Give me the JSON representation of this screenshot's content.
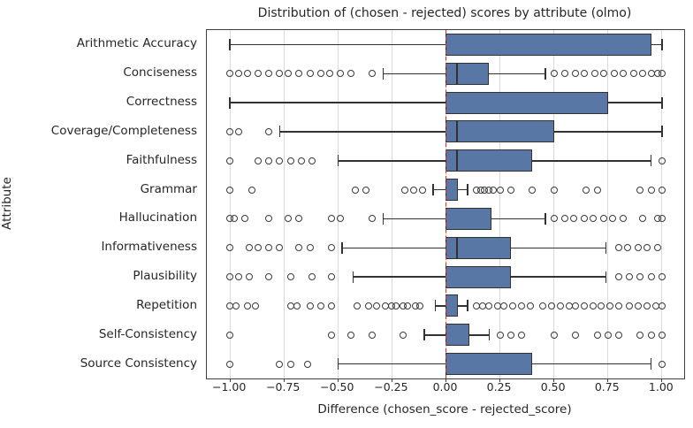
{
  "chart_data": {
    "type": "boxplot",
    "orientation": "horizontal",
    "title": "Distribution of (chosen - rejected) scores by attribute (olmo)",
    "xlabel": "Difference (chosen_score - rejected_score)",
    "ylabel": "Attribute",
    "xlim": [
      -1.107,
      1.103
    ],
    "grid": "vertical-only",
    "x_ticks": [
      {
        "value": -1.0,
        "label": "−1.00"
      },
      {
        "value": -0.75,
        "label": "−0.75"
      },
      {
        "value": -0.5,
        "label": "−0.50"
      },
      {
        "value": -0.25,
        "label": "−0.25"
      },
      {
        "value": 0.0,
        "label": "0.00"
      },
      {
        "value": 0.25,
        "label": "0.25"
      },
      {
        "value": 0.5,
        "label": "0.50"
      },
      {
        "value": 0.75,
        "label": "0.75"
      },
      {
        "value": 1.0,
        "label": "1.00"
      }
    ],
    "zero_line": {
      "value": 0.0,
      "style": "dashed",
      "color": "#e12a26"
    },
    "colors": {
      "box_fill": "#5877a5",
      "stroke": "#323232",
      "grid": "#d9d9d9",
      "text": "#262626",
      "zero_line": "#e12a26"
    },
    "rows": [
      {
        "label": "Arithmetic Accuracy",
        "whisker_low": -1.0,
        "q1": 0.0,
        "median": 0.0,
        "q3": 0.95,
        "whisker_high": 1.0,
        "outliers": []
      },
      {
        "label": "Conciseness",
        "whisker_low": -0.29,
        "q1": 0.0,
        "median": 0.05,
        "q3": 0.2,
        "whisker_high": 0.46,
        "outliers": [
          -1.0,
          -0.96,
          -0.92,
          -0.87,
          -0.82,
          -0.77,
          -0.73,
          -0.68,
          -0.63,
          -0.58,
          -0.54,
          -0.49,
          -0.44,
          -0.34,
          0.5,
          0.55,
          0.6,
          0.64,
          0.69,
          0.73,
          0.78,
          0.82,
          0.87,
          0.91,
          0.95,
          0.98,
          1.0
        ]
      },
      {
        "label": "Correctness",
        "whisker_low": -1.0,
        "q1": 0.0,
        "median": 0.0,
        "q3": 0.75,
        "whisker_high": 1.0,
        "outliers": []
      },
      {
        "label": "Coverage/Completeness",
        "whisker_low": -0.77,
        "q1": 0.0,
        "median": 0.05,
        "q3": 0.5,
        "whisker_high": 1.0,
        "outliers": [
          -1.0,
          -0.96,
          -0.82
        ]
      },
      {
        "label": "Faithfulness",
        "whisker_low": -0.5,
        "q1": 0.0,
        "median": 0.05,
        "q3": 0.4,
        "whisker_high": 0.95,
        "outliers": [
          -1.0,
          -0.87,
          -0.82,
          -0.77,
          -0.72,
          -0.67,
          -0.62,
          1.0
        ]
      },
      {
        "label": "Grammar",
        "whisker_low": -0.06,
        "q1": 0.0,
        "median": 0.0,
        "q3": 0.055,
        "whisker_high": 0.1,
        "outliers": [
          -1.0,
          -0.9,
          -0.42,
          -0.37,
          -0.19,
          -0.15,
          -0.11,
          0.14,
          0.16,
          0.18,
          0.2,
          0.22,
          0.25,
          0.3,
          0.4,
          0.5,
          0.65,
          0.7,
          0.9,
          0.95,
          1.0
        ]
      },
      {
        "label": "Hallucination",
        "whisker_low": -0.29,
        "q1": 0.0,
        "median": 0.0,
        "q3": 0.21,
        "whisker_high": 0.46,
        "outliers": [
          -1.0,
          -0.98,
          -0.93,
          -0.82,
          -0.73,
          -0.68,
          -0.53,
          -0.49,
          -0.34,
          0.5,
          0.55,
          0.59,
          0.64,
          0.68,
          0.73,
          0.77,
          0.82,
          0.91,
          0.98,
          1.0
        ]
      },
      {
        "label": "Informativeness",
        "whisker_low": -0.48,
        "q1": 0.0,
        "median": 0.05,
        "q3": 0.3,
        "whisker_high": 0.74,
        "outliers": [
          -1.0,
          -0.91,
          -0.87,
          -0.82,
          -0.77,
          -0.68,
          -0.63,
          -0.53,
          0.8,
          0.84,
          0.89,
          0.93,
          0.98
        ]
      },
      {
        "label": "Plausibility",
        "whisker_low": -0.43,
        "q1": 0.0,
        "median": 0.0,
        "q3": 0.3,
        "whisker_high": 0.74,
        "outliers": [
          -1.0,
          -0.96,
          -0.91,
          -0.82,
          -0.72,
          -0.62,
          -0.53,
          0.8,
          0.85,
          0.9,
          0.95,
          1.0
        ]
      },
      {
        "label": "Repetition",
        "whisker_low": -0.05,
        "q1": 0.0,
        "median": 0.0,
        "q3": 0.055,
        "whisker_high": 0.1,
        "outliers": [
          -1.0,
          -0.97,
          -0.92,
          -0.88,
          -0.72,
          -0.69,
          -0.63,
          -0.58,
          -0.53,
          -0.41,
          -0.36,
          -0.32,
          -0.28,
          -0.25,
          -0.23,
          -0.2,
          -0.18,
          -0.14,
          -0.12,
          0.14,
          0.17,
          0.2,
          0.24,
          0.27,
          0.31,
          0.35,
          0.39,
          0.45,
          0.49,
          0.53,
          0.57,
          0.6,
          0.64,
          0.68,
          0.72,
          0.76,
          0.8,
          0.85,
          0.89,
          0.93,
          0.97,
          1.0
        ]
      },
      {
        "label": "Self-Consistency",
        "whisker_low": -0.1,
        "q1": 0.0,
        "median": 0.0,
        "q3": 0.11,
        "whisker_high": 0.2,
        "outliers": [
          -1.0,
          -0.53,
          -0.44,
          -0.34,
          -0.2,
          0.25,
          0.3,
          0.35,
          0.5,
          0.6,
          0.7,
          0.75,
          0.8,
          0.9,
          0.95,
          1.0
        ]
      },
      {
        "label": "Source Consistency",
        "whisker_low": -0.5,
        "q1": 0.0,
        "median": 0.0,
        "q3": 0.4,
        "whisker_high": 0.95,
        "outliers": [
          -1.0,
          -0.77,
          -0.72,
          -0.64,
          1.0
        ]
      }
    ]
  }
}
